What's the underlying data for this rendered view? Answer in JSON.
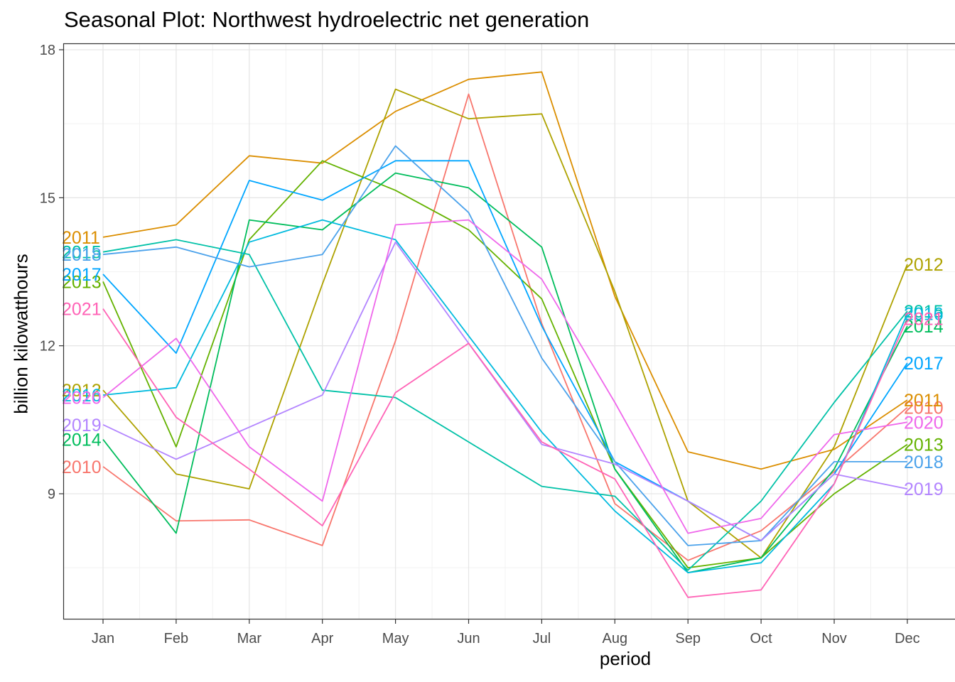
{
  "title": "Seasonal Plot: Northwest hydroelectric net generation",
  "chart_data": {
    "type": "line",
    "title": "Seasonal Plot: Northwest hydroelectric net generation",
    "xlabel": "period",
    "ylabel": "billion kilowatthours",
    "categories": [
      "Jan",
      "Feb",
      "Mar",
      "Apr",
      "May",
      "Jun",
      "Jul",
      "Aug",
      "Sep",
      "Oct",
      "Nov",
      "Dec"
    ],
    "yticks": [
      9,
      12,
      15,
      18
    ],
    "ylim": [
      6.5,
      18.1
    ],
    "grid": true,
    "legend": "none",
    "series": [
      {
        "name": "2010",
        "color": "#F8766D",
        "values": [
          9.55,
          8.45,
          8.47,
          7.95,
          12.1,
          17.1,
          12.45,
          8.8,
          7.65,
          8.25,
          9.45,
          10.75
        ]
      },
      {
        "name": "2011",
        "color": "#DB8E00",
        "values": [
          14.2,
          14.45,
          15.85,
          15.7,
          16.75,
          17.4,
          17.55,
          13.0,
          9.85,
          9.5,
          9.9,
          10.9
        ]
      },
      {
        "name": "2012",
        "color": "#AEA200",
        "values": [
          11.1,
          9.4,
          9.1,
          13.25,
          17.2,
          16.6,
          16.7,
          13.1,
          8.85,
          7.7,
          9.95,
          13.65
        ]
      },
      {
        "name": "2013",
        "color": "#64B200",
        "values": [
          13.3,
          9.95,
          14.15,
          15.75,
          15.15,
          14.35,
          12.95,
          9.5,
          7.5,
          7.7,
          9.0,
          10.0
        ]
      },
      {
        "name": "2014",
        "color": "#00BD5C",
        "values": [
          10.1,
          8.2,
          14.55,
          14.35,
          15.5,
          15.2,
          14.0,
          9.5,
          7.4,
          7.7,
          9.5,
          12.4
        ]
      },
      {
        "name": "2015",
        "color": "#00C1A7",
        "values": [
          13.9,
          14.15,
          13.85,
          11.1,
          10.95,
          10.05,
          9.15,
          8.95,
          7.45,
          8.85,
          10.85,
          12.7
        ]
      },
      {
        "name": "2016",
        "color": "#00BADE",
        "values": [
          11.0,
          11.15,
          14.1,
          14.55,
          14.15,
          12.2,
          10.25,
          8.65,
          7.4,
          7.6,
          9.2,
          12.65
        ]
      },
      {
        "name": "2017",
        "color": "#00A6FF",
        "values": [
          13.45,
          11.85,
          15.35,
          14.95,
          15.75,
          15.75,
          12.4,
          9.65,
          8.85,
          8.05,
          9.4,
          11.65
        ]
      },
      {
        "name": "2018",
        "color": "#4BA2EB",
        "values": [
          13.85,
          14.0,
          13.6,
          13.85,
          16.05,
          14.7,
          11.75,
          9.65,
          7.95,
          8.05,
          9.65,
          9.65
        ]
      },
      {
        "name": "2019",
        "color": "#B385FF",
        "values": [
          10.4,
          9.7,
          10.35,
          11.0,
          14.1,
          12.05,
          10.0,
          9.6,
          8.85,
          8.05,
          9.4,
          9.1
        ]
      },
      {
        "name": "2020",
        "color": "#EF67EB",
        "values": [
          10.95,
          12.15,
          9.95,
          8.85,
          14.45,
          14.55,
          13.35,
          10.85,
          8.2,
          8.5,
          10.2,
          10.45
        ]
      },
      {
        "name": "2021",
        "color": "#FF63B6",
        "values": [
          12.75,
          10.55,
          9.5,
          8.35,
          11.05,
          12.05,
          10.05,
          9.3,
          6.9,
          7.05,
          9.2,
          12.55
        ]
      }
    ]
  }
}
